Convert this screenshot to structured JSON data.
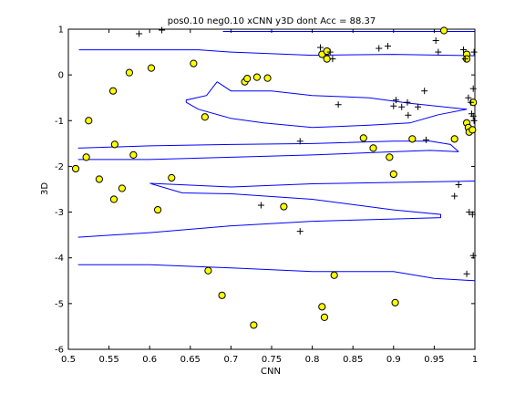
{
  "chart_data": {
    "type": "scatter",
    "title": "pos0.10 neg0.10 xCNN y3D dont Acc = 88.37",
    "xlabel": "CNN",
    "ylabel": "3D",
    "xlim": [
      0.5,
      1.0
    ],
    "ylim": [
      -6,
      1
    ],
    "x_ticks": [
      "0.5",
      "0.55",
      "0.6",
      "0.65",
      "0.7",
      "0.75",
      "0.8",
      "0.85",
      "0.9",
      "0.95",
      "1"
    ],
    "y_ticks": [
      "1",
      "0",
      "-1",
      "-2",
      "-3",
      "-4",
      "-5",
      "-6"
    ],
    "grid": false,
    "colors": {
      "boundary": "#0000ff",
      "circle_fill": "#ffff00",
      "circle_edge": "#000000",
      "cross": "#000000"
    },
    "series": [
      {
        "marker": "circle",
        "points": [
          [
            0.509,
            -2.05
          ],
          [
            0.522,
            -1.8
          ],
          [
            0.525,
            -1.0
          ],
          [
            0.538,
            -2.28
          ],
          [
            0.555,
            -0.35
          ],
          [
            0.557,
            -1.52
          ],
          [
            0.556,
            -2.72
          ],
          [
            0.566,
            -2.48
          ],
          [
            0.575,
            0.05
          ],
          [
            0.58,
            -1.75
          ],
          [
            0.602,
            0.15
          ],
          [
            0.61,
            -2.95
          ],
          [
            0.627,
            -2.25
          ],
          [
            0.654,
            0.25
          ],
          [
            0.668,
            -0.92
          ],
          [
            0.672,
            -4.28
          ],
          [
            0.689,
            -4.82
          ],
          [
            0.717,
            -0.15
          ],
          [
            0.72,
            -0.08
          ],
          [
            0.732,
            -0.05
          ],
          [
            0.728,
            -5.47
          ],
          [
            0.745,
            -0.07
          ],
          [
            0.765,
            -2.88
          ],
          [
            0.812,
            0.45
          ],
          [
            0.818,
            0.35
          ],
          [
            0.818,
            0.52
          ],
          [
            0.812,
            -5.07
          ],
          [
            0.815,
            -5.3
          ],
          [
            0.827,
            -4.38
          ],
          [
            0.863,
            -1.38
          ],
          [
            0.875,
            -1.6
          ],
          [
            0.895,
            -1.8
          ],
          [
            0.9,
            -2.17
          ],
          [
            0.923,
            -1.4
          ],
          [
            0.902,
            -4.98
          ],
          [
            0.962,
            0.97
          ],
          [
            0.975,
            -1.4
          ],
          [
            0.99,
            0.45
          ],
          [
            0.99,
            0.35
          ],
          [
            0.99,
            -1.05
          ],
          [
            0.992,
            -1.15
          ],
          [
            0.993,
            -1.25
          ],
          [
            0.997,
            -1.2
          ],
          [
            0.998,
            -0.6
          ]
        ]
      },
      {
        "marker": "cross",
        "points": [
          [
            0.587,
            0.9
          ],
          [
            0.615,
            0.98
          ],
          [
            0.81,
            0.6
          ],
          [
            0.822,
            0.5
          ],
          [
            0.825,
            0.35
          ],
          [
            0.832,
            -0.65
          ],
          [
            0.882,
            0.58
          ],
          [
            0.893,
            0.63
          ],
          [
            0.9,
            -0.68
          ],
          [
            0.903,
            -0.55
          ],
          [
            0.91,
            -0.7
          ],
          [
            0.918,
            -0.88
          ],
          [
            0.917,
            -0.6
          ],
          [
            0.93,
            -0.7
          ],
          [
            0.938,
            -0.35
          ],
          [
            0.94,
            -1.42
          ],
          [
            0.952,
            0.75
          ],
          [
            0.955,
            0.5
          ],
          [
            0.986,
            0.55
          ],
          [
            0.988,
            0.35
          ],
          [
            0.992,
            -0.5
          ],
          [
            0.995,
            -0.6
          ],
          [
            0.996,
            -0.85
          ],
          [
            0.998,
            -0.9
          ],
          [
            0.98,
            -2.4
          ],
          [
            0.975,
            -2.65
          ],
          [
            0.993,
            -3.0
          ],
          [
            0.997,
            -3.05
          ],
          [
            0.998,
            -3.95
          ],
          [
            0.99,
            -4.35
          ],
          [
            0.785,
            -1.45
          ],
          [
            0.785,
            -3.42
          ],
          [
            0.737,
            -2.85
          ],
          [
            0.998,
            -0.3
          ],
          [
            0.999,
            -1.0
          ],
          [
            0.999,
            0.5
          ]
        ]
      }
    ],
    "boundaries": [
      [
        [
          0.513,
          0.55
        ],
        [
          0.66,
          0.55
        ],
        [
          0.7,
          0.5
        ],
        [
          0.8,
          0.43
        ],
        [
          0.9,
          0.45
        ],
        [
          1.0,
          0.42
        ]
      ],
      [
        [
          0.69,
          0.95
        ],
        [
          1.0,
          0.95
        ]
      ],
      [
        [
          0.683,
          -0.15
        ],
        [
          0.7,
          -0.35
        ],
        [
          0.75,
          -0.35
        ],
        [
          0.8,
          -0.45
        ],
        [
          0.87,
          -0.5
        ],
        [
          0.92,
          -0.62
        ],
        [
          0.99,
          -0.75
        ]
      ],
      [
        [
          0.99,
          -0.75
        ],
        [
          0.955,
          -0.87
        ],
        [
          0.92,
          -1.05
        ],
        [
          0.87,
          -1.1
        ],
        [
          0.8,
          -1.15
        ],
        [
          0.74,
          -1.05
        ],
        [
          0.7,
          -0.95
        ],
        [
          0.66,
          -0.75
        ],
        [
          0.645,
          -0.6
        ],
        [
          0.645,
          -0.55
        ],
        [
          0.67,
          -0.45
        ],
        [
          0.683,
          -0.15
        ]
      ],
      [
        [
          0.512,
          -1.6
        ],
        [
          0.6,
          -1.55
        ],
        [
          0.7,
          -1.52
        ],
        [
          0.8,
          -1.5
        ],
        [
          0.9,
          -1.45
        ],
        [
          0.945,
          -1.45
        ],
        [
          0.97,
          -1.52
        ],
        [
          0.98,
          -1.68
        ]
      ],
      [
        [
          0.98,
          -1.68
        ],
        [
          0.945,
          -1.65
        ],
        [
          0.9,
          -1.68
        ],
        [
          0.8,
          -1.75
        ],
        [
          0.7,
          -1.8
        ],
        [
          0.6,
          -1.85
        ],
        [
          0.512,
          -1.85
        ]
      ],
      [
        [
          0.6,
          -2.37
        ],
        [
          0.7,
          -2.45
        ],
        [
          0.8,
          -2.38
        ],
        [
          0.9,
          -2.35
        ],
        [
          1.0,
          -2.32
        ]
      ],
      [
        [
          0.602,
          -2.38
        ],
        [
          0.64,
          -2.58
        ],
        [
          0.7,
          -2.6
        ],
        [
          0.8,
          -2.72
        ],
        [
          0.9,
          -2.95
        ],
        [
          0.958,
          -3.05
        ],
        [
          0.958,
          -3.12
        ],
        [
          0.9,
          -3.15
        ],
        [
          0.8,
          -3.2
        ],
        [
          0.7,
          -3.3
        ],
        [
          0.6,
          -3.45
        ],
        [
          0.512,
          -3.55
        ]
      ],
      [
        [
          0.512,
          -4.15
        ],
        [
          0.6,
          -4.15
        ],
        [
          0.7,
          -4.22
        ],
        [
          0.8,
          -4.3
        ],
        [
          0.9,
          -4.3
        ],
        [
          0.95,
          -4.45
        ],
        [
          1.0,
          -4.5
        ]
      ]
    ]
  }
}
